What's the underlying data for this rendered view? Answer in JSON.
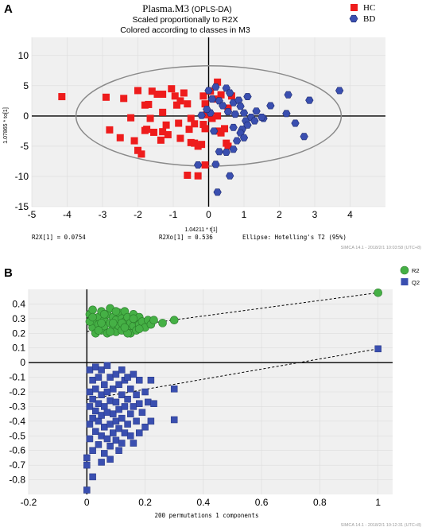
{
  "panelA": {
    "panel_label": "A",
    "title_main": "Plasma.M3",
    "title_suffix": "(OPLS-DA)",
    "subtitle1": "Scaled proportionally to R2X",
    "subtitle2": "Colored according to classes in M3",
    "footer_r2x": "R2X[1] = 0.0754",
    "footer_r2xo": "R2Xo[1] = 0.536",
    "footer_ellipse": "Ellipse: Hotelling's T2 (95%)",
    "watermark": "SIMCA 14.1 - 2018/2/1 10:03:58 (UTC+8)"
  },
  "panelB": {
    "panel_label": "B",
    "watermark": "SIMCA 14.1 - 2018/2/1 10:12:31 (UTC+8)"
  },
  "colors": {
    "hc": "#ee1c1c",
    "bd": "#3a4fb0",
    "r2": "#45b045",
    "q2": "#3a4fb0",
    "plot_bg": "#f0f0f0",
    "ellipse": "#8a8a8a"
  },
  "chart_data": [
    {
      "type": "scatter",
      "xlabel": "1.04211 * t[1]",
      "ylabel": "1.07865 * to[1]",
      "xlim": [
        -5,
        5
      ],
      "ylim": [
        -15,
        13
      ],
      "xticks": [
        -5,
        -4,
        -3,
        -2,
        -1,
        0,
        1,
        2,
        3,
        4
      ],
      "yticks": [
        -15,
        -10,
        -5,
        0,
        5,
        10
      ],
      "legend_position": "top-right",
      "ellipse": {
        "center": [
          0,
          0
        ],
        "rx": 3.75,
        "ry": 8.3
      },
      "series": [
        {
          "name": "HC",
          "marker": "square",
          "points": [
            [
              -4.15,
              3.2
            ],
            [
              -2.9,
              3.1
            ],
            [
              -2.4,
              2.9
            ],
            [
              -2.0,
              4.2
            ],
            [
              -1.8,
              1.8
            ],
            [
              -2.2,
              -0.3
            ],
            [
              -2.5,
              -3.6
            ],
            [
              -2.8,
              -2.3
            ],
            [
              -2.1,
              -4.1
            ],
            [
              -2.0,
              -5.7
            ],
            [
              -1.9,
              -6.3
            ],
            [
              -1.6,
              4.1
            ],
            [
              -1.7,
              1.9
            ],
            [
              -1.65,
              -0.4
            ],
            [
              -1.75,
              -2.2
            ],
            [
              -1.8,
              -2.4
            ],
            [
              -1.55,
              -2.7
            ],
            [
              -1.45,
              3.6
            ],
            [
              -1.3,
              3.6
            ],
            [
              -1.3,
              0.6
            ],
            [
              -1.2,
              -1.5
            ],
            [
              -1.3,
              -2.6
            ],
            [
              -1.35,
              -4.0
            ],
            [
              -1.15,
              -3.1
            ],
            [
              -1.05,
              4.5
            ],
            [
              -0.95,
              3.3
            ],
            [
              -0.9,
              1.8
            ],
            [
              -0.8,
              2.5
            ],
            [
              -0.85,
              -1.2
            ],
            [
              -0.8,
              -3.7
            ],
            [
              -0.7,
              3.8
            ],
            [
              -0.6,
              2.0
            ],
            [
              -0.5,
              -0.4
            ],
            [
              -0.55,
              -2.2
            ],
            [
              -0.5,
              -4.4
            ],
            [
              -0.4,
              -4.5
            ],
            [
              -0.3,
              -5.0
            ],
            [
              -0.2,
              -4.7
            ],
            [
              -0.15,
              3.3
            ],
            [
              -0.1,
              2.0
            ],
            [
              -0.05,
              0.2
            ],
            [
              -0.1,
              -2.1
            ],
            [
              -0.4,
              -1.3
            ],
            [
              -0.6,
              -9.8
            ],
            [
              -0.3,
              -9.9
            ],
            [
              -0.1,
              -8.1
            ],
            [
              0.05,
              4.1
            ],
            [
              0.1,
              -0.4
            ],
            [
              0.25,
              0.0
            ],
            [
              0.3,
              -2.5
            ],
            [
              0.45,
              -2.1
            ],
            [
              0.5,
              -4.5
            ],
            [
              0.55,
              1.3
            ],
            [
              0.15,
              2.8
            ],
            [
              0.35,
              -2.8
            ],
            [
              -0.15,
              -1.4
            ],
            [
              0.25,
              5.6
            ],
            [
              0.35,
              3.5
            ],
            [
              0.55,
              -5.0
            ],
            [
              0.65,
              3.3
            ]
          ]
        },
        {
          "name": "BD",
          "marker": "hexagon",
          "points": [
            [
              0.0,
              4.2
            ],
            [
              0.1,
              2.8
            ],
            [
              0.2,
              4.8
            ],
            [
              0.3,
              2.5
            ],
            [
              0.15,
              -2.5
            ],
            [
              0.5,
              4.6
            ],
            [
              0.6,
              3.8
            ],
            [
              0.7,
              2.2
            ],
            [
              0.75,
              0.3
            ],
            [
              0.85,
              2.6
            ],
            [
              0.9,
              1.6
            ],
            [
              1.0,
              0.5
            ],
            [
              1.05,
              -0.8
            ],
            [
              1.1,
              3.2
            ],
            [
              1.2,
              -0.2
            ],
            [
              1.3,
              -0.8
            ],
            [
              1.35,
              0.8
            ],
            [
              0.95,
              -2.2
            ],
            [
              0.9,
              -2.8
            ],
            [
              1.0,
              -3.6
            ],
            [
              0.8,
              -4.1
            ],
            [
              0.7,
              -5.5
            ],
            [
              0.5,
              -6.0
            ],
            [
              0.3,
              -5.9
            ],
            [
              0.2,
              -8.0
            ],
            [
              -0.3,
              -8.1
            ],
            [
              0.6,
              -9.9
            ],
            [
              0.25,
              -12.6
            ],
            [
              2.25,
              3.5
            ],
            [
              1.75,
              1.7
            ],
            [
              1.55,
              -0.4
            ],
            [
              2.2,
              0.4
            ],
            [
              2.45,
              -1.2
            ],
            [
              2.7,
              -3.4
            ],
            [
              2.85,
              2.6
            ],
            [
              3.7,
              4.2
            ],
            [
              1.1,
              -1.5
            ],
            [
              0.55,
              0.7
            ],
            [
              0.4,
              1.7
            ],
            [
              0.05,
              0.5
            ],
            [
              -0.2,
              0.1
            ],
            [
              -0.05,
              1.1
            ],
            [
              0.7,
              -1.9
            ],
            [
              1.5,
              -0.2
            ]
          ]
        }
      ]
    },
    {
      "type": "scatter",
      "xlabel": "200 permutations 1 components",
      "ylabel": "",
      "xlim": [
        -0.2,
        1.05
      ],
      "ylim": [
        -0.9,
        0.5
      ],
      "xticks": [
        -0.2,
        0,
        0.2,
        0.4,
        0.6,
        0.8,
        1
      ],
      "yticks": [
        -0.8,
        -0.7,
        -0.6,
        -0.5,
        -0.4,
        -0.3,
        -0.2,
        -0.1,
        0,
        0.1,
        0.2,
        0.3,
        0.4
      ],
      "legend_position": "top-right",
      "series": [
        {
          "name": "R2",
          "marker": "circle",
          "regression_line": [
            [
              0.0,
              0.212
            ],
            [
              1.0,
              0.477
            ]
          ],
          "points": [
            [
              1.0,
              0.477
            ],
            [
              0.01,
              0.33
            ],
            [
              0.02,
              0.24
            ],
            [
              0.02,
              0.36
            ],
            [
              0.03,
              0.28
            ],
            [
              0.03,
              0.2
            ],
            [
              0.04,
              0.31
            ],
            [
              0.04,
              0.26
            ],
            [
              0.05,
              0.35
            ],
            [
              0.05,
              0.22
            ],
            [
              0.06,
              0.29
            ],
            [
              0.06,
              0.25
            ],
            [
              0.07,
              0.33
            ],
            [
              0.07,
              0.2
            ],
            [
              0.08,
              0.37
            ],
            [
              0.08,
              0.27
            ],
            [
              0.09,
              0.23
            ],
            [
              0.09,
              0.31
            ],
            [
              0.1,
              0.29
            ],
            [
              0.1,
              0.21
            ],
            [
              0.11,
              0.34
            ],
            [
              0.11,
              0.25
            ],
            [
              0.12,
              0.3
            ],
            [
              0.12,
              0.22
            ],
            [
              0.13,
              0.28
            ],
            [
              0.13,
              0.35
            ],
            [
              0.14,
              0.24
            ],
            [
              0.14,
              0.31
            ],
            [
              0.15,
              0.27
            ],
            [
              0.15,
              0.2
            ],
            [
              0.16,
              0.33
            ],
            [
              0.16,
              0.25
            ],
            [
              0.17,
              0.29
            ],
            [
              0.17,
              0.22
            ],
            [
              0.18,
              0.31
            ],
            [
              0.18,
              0.26
            ],
            [
              0.19,
              0.28
            ],
            [
              0.2,
              0.24
            ],
            [
              0.21,
              0.29
            ],
            [
              0.22,
              0.26
            ],
            [
              0.23,
              0.29
            ],
            [
              0.26,
              0.27
            ],
            [
              0.3,
              0.29
            ],
            [
              0.01,
              0.28
            ],
            [
              0.02,
              0.31
            ],
            [
              0.04,
              0.22
            ],
            [
              0.06,
              0.33
            ],
            [
              0.08,
              0.21
            ],
            [
              0.1,
              0.35
            ],
            [
              0.12,
              0.27
            ],
            [
              0.14,
              0.2
            ],
            [
              0.16,
              0.3
            ],
            [
              0.18,
              0.23
            ],
            [
              0.05,
              0.27
            ],
            [
              0.09,
              0.27
            ],
            [
              0.13,
              0.24
            ]
          ]
        },
        {
          "name": "Q2",
          "marker": "square",
          "regression_line": [
            [
              0.0,
              -0.252
            ],
            [
              1.0,
              0.094
            ]
          ],
          "points": [
            [
              1.0,
              0.094
            ],
            [
              0.0,
              -0.87
            ],
            [
              0.0,
              -0.65
            ],
            [
              0.01,
              -0.52
            ],
            [
              0.01,
              -0.42
            ],
            [
              0.01,
              -0.3
            ],
            [
              0.01,
              -0.2
            ],
            [
              0.01,
              -0.05
            ],
            [
              0.02,
              -0.6
            ],
            [
              0.02,
              -0.38
            ],
            [
              0.02,
              -0.25
            ],
            [
              0.02,
              -0.12
            ],
            [
              0.03,
              -0.47
            ],
            [
              0.03,
              -0.33
            ],
            [
              0.03,
              -0.18
            ],
            [
              0.03,
              -0.03
            ],
            [
              0.04,
              -0.56
            ],
            [
              0.04,
              -0.4
            ],
            [
              0.04,
              -0.28
            ],
            [
              0.04,
              -0.1
            ],
            [
              0.05,
              -0.5
            ],
            [
              0.05,
              -0.36
            ],
            [
              0.05,
              -0.22
            ],
            [
              0.05,
              -0.05
            ],
            [
              0.06,
              -0.62
            ],
            [
              0.06,
              -0.44
            ],
            [
              0.06,
              -0.3
            ],
            [
              0.06,
              -0.15
            ],
            [
              0.07,
              -0.52
            ],
            [
              0.07,
              -0.34
            ],
            [
              0.07,
              -0.2
            ],
            [
              0.07,
              -0.02
            ],
            [
              0.08,
              -0.57
            ],
            [
              0.08,
              -0.42
            ],
            [
              0.08,
              -0.26
            ],
            [
              0.08,
              -0.1
            ],
            [
              0.09,
              -0.48
            ],
            [
              0.09,
              -0.35
            ],
            [
              0.09,
              -0.18
            ],
            [
              0.1,
              -0.53
            ],
            [
              0.1,
              -0.4
            ],
            [
              0.1,
              -0.27
            ],
            [
              0.1,
              -0.08
            ],
            [
              0.11,
              -0.45
            ],
            [
              0.11,
              -0.32
            ],
            [
              0.11,
              -0.15
            ],
            [
              0.12,
              -0.55
            ],
            [
              0.12,
              -0.38
            ],
            [
              0.12,
              -0.22
            ],
            [
              0.12,
              -0.05
            ],
            [
              0.13,
              -0.48
            ],
            [
              0.13,
              -0.3
            ],
            [
              0.13,
              -0.12
            ],
            [
              0.14,
              -0.42
            ],
            [
              0.14,
              -0.25
            ],
            [
              0.14,
              -0.1
            ],
            [
              0.15,
              -0.5
            ],
            [
              0.15,
              -0.35
            ],
            [
              0.15,
              -0.18
            ],
            [
              0.16,
              -0.55
            ],
            [
              0.16,
              -0.3
            ],
            [
              0.16,
              -0.08
            ],
            [
              0.17,
              -0.4
            ],
            [
              0.17,
              -0.22
            ],
            [
              0.18,
              -0.48
            ],
            [
              0.18,
              -0.28
            ],
            [
              0.18,
              -0.12
            ],
            [
              0.19,
              -0.34
            ],
            [
              0.2,
              -0.44
            ],
            [
              0.2,
              -0.2
            ],
            [
              0.21,
              -0.27
            ],
            [
              0.22,
              -0.4
            ],
            [
              0.22,
              -0.12
            ],
            [
              0.23,
              -0.28
            ],
            [
              0.3,
              -0.39
            ],
            [
              0.3,
              -0.18
            ],
            [
              0.0,
              -0.7
            ],
            [
              0.02,
              -0.78
            ],
            [
              0.05,
              -0.68
            ],
            [
              0.08,
              -0.66
            ],
            [
              0.11,
              -0.6
            ]
          ]
        }
      ]
    }
  ]
}
